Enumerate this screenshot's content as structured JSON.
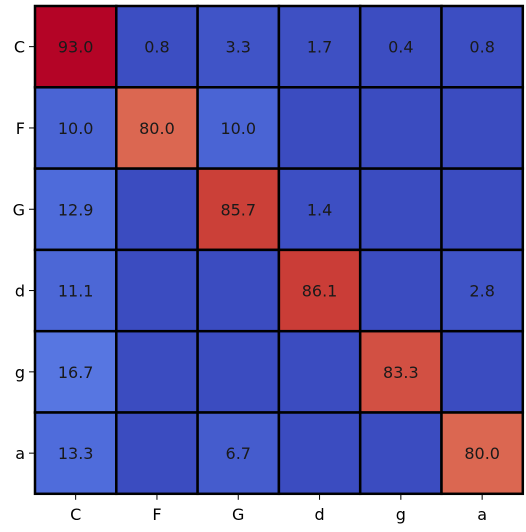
{
  "chart_data": {
    "type": "heatmap",
    "rows": [
      "C",
      "F",
      "G",
      "d",
      "g",
      "a"
    ],
    "columns": [
      "C",
      "F",
      "G",
      "d",
      "g",
      "a"
    ],
    "values": [
      [
        93.0,
        0.8,
        3.3,
        1.7,
        0.4,
        0.8
      ],
      [
        10.0,
        80.0,
        10.0,
        0,
        0,
        0
      ],
      [
        12.9,
        0,
        85.7,
        1.4,
        0,
        0
      ],
      [
        11.1,
        0,
        0,
        86.1,
        0,
        2.8
      ],
      [
        16.7,
        0,
        0,
        0,
        83.3,
        0
      ],
      [
        13.3,
        0,
        6.7,
        0,
        0,
        80.0
      ]
    ],
    "labels": [
      [
        "93.0",
        "0.8",
        "3.3",
        "1.7",
        "0.4",
        "0.8"
      ],
      [
        "10.0",
        "80.0",
        "10.0",
        "",
        "",
        ""
      ],
      [
        "12.9",
        "",
        "85.7",
        "1.4",
        "",
        ""
      ],
      [
        "11.1",
        "",
        "",
        "86.1",
        "",
        "2.8"
      ],
      [
        "16.7",
        "",
        "",
        "",
        "83.3",
        ""
      ],
      [
        "13.3",
        "",
        "6.7",
        "",
        "",
        "80.0"
      ]
    ],
    "colormap": "coolwarm",
    "vmin": 0,
    "vmax": 93.0,
    "title": "",
    "xlabel": "",
    "ylabel": "",
    "grid": true,
    "grid_color": "#000000"
  }
}
